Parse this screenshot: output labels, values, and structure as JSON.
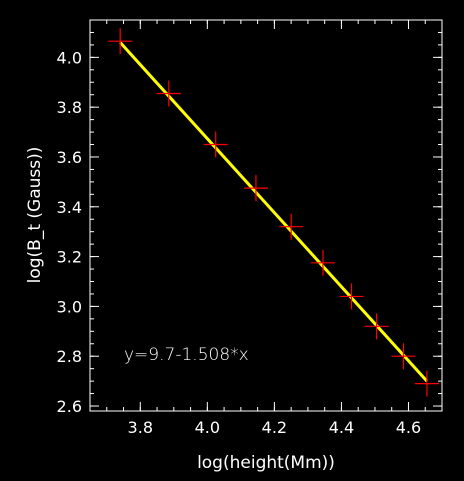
{
  "chart_data": {
    "type": "scatter",
    "xlabel": "log(height(Mm))",
    "ylabel": "log(B_t (Gauss))",
    "annotation": "y=9.7-1.508*x",
    "xlim": [
      3.65,
      4.7
    ],
    "ylim": [
      2.58,
      4.15
    ],
    "x_ticks": [
      "3.8",
      "4.0",
      "4.2",
      "4.4",
      "4.6"
    ],
    "y_ticks": [
      "2.6",
      "2.8",
      "3.0",
      "3.2",
      "3.4",
      "3.6",
      "3.8",
      "4.0"
    ],
    "background_color": "#000000",
    "axis_color": "#ffffff",
    "series": [
      {
        "kind": "points",
        "marker": "plus",
        "color": "#ff0000",
        "x": [
          3.74,
          3.885,
          4.025,
          4.145,
          4.25,
          4.345,
          4.43,
          4.505,
          4.585,
          4.655
        ],
        "y": [
          4.065,
          3.855,
          3.65,
          3.475,
          3.32,
          3.175,
          3.04,
          2.92,
          2.8,
          2.69
        ]
      },
      {
        "kind": "fit-line",
        "color": "#ffff00",
        "x": [
          3.74,
          4.655
        ],
        "y": [
          4.06,
          2.7
        ]
      }
    ]
  }
}
